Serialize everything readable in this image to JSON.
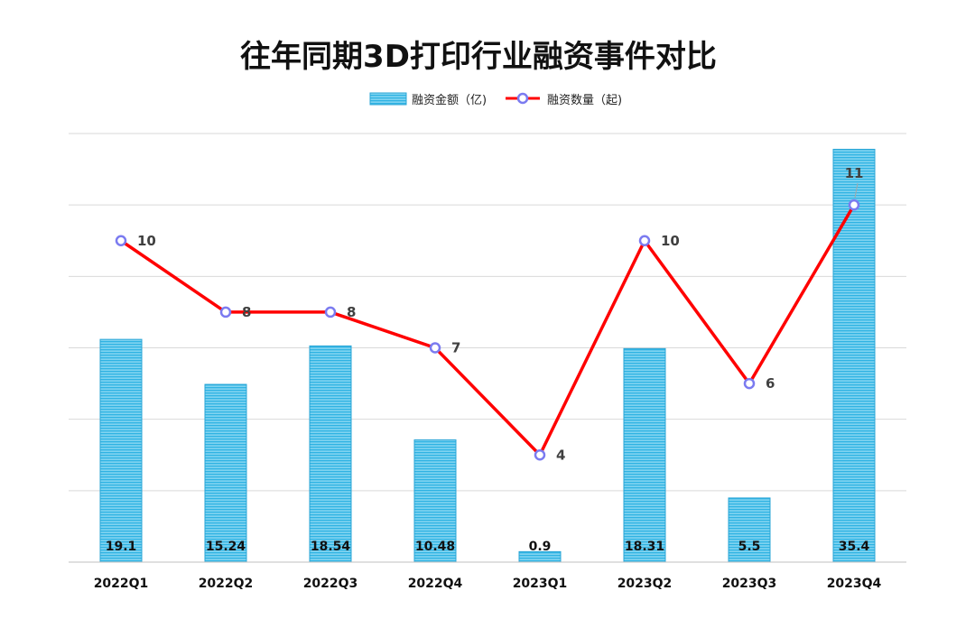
{
  "chart_data": {
    "type": "bar+line",
    "title": "往年同期3D打印行业融资事件对比",
    "categories": [
      "2022Q1",
      "2022Q2",
      "2022Q3",
      "2022Q4",
      "2023Q1",
      "2023Q2",
      "2023Q3",
      "2023Q4"
    ],
    "series": [
      {
        "name": "融资金额（亿)",
        "type": "bar",
        "values": [
          19.1,
          15.24,
          18.54,
          10.48,
          0.9,
          18.31,
          5.5,
          35.4
        ],
        "color": "#29b6e6",
        "label_position": "inside-bottom"
      },
      {
        "name": "融资数量（起)",
        "type": "line",
        "values": [
          10,
          8,
          8,
          7,
          4,
          10,
          6,
          11
        ],
        "color": "#ff0000",
        "marker_color": "#7b7bf0",
        "label_position": "right"
      }
    ],
    "bar_axis_range": [
      0,
      36.75
    ],
    "line_axis_range": [
      1,
      13
    ],
    "grid": true,
    "legend": "top-center",
    "axis_labels_shown": false
  }
}
